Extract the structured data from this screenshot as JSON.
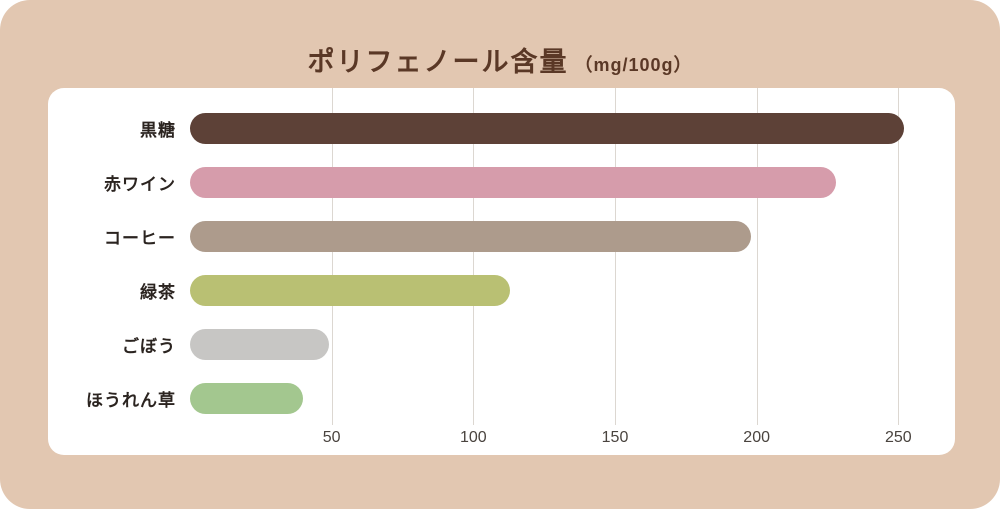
{
  "title": {
    "main": "ポリフェノール含量",
    "unit": "（mg/100g）"
  },
  "chart_data": {
    "type": "bar",
    "orientation": "horizontal",
    "title": "ポリフェノール含量（mg/100g）",
    "unit": "mg/100g",
    "categories": [
      "黒糖",
      "赤ワイン",
      "コーヒー",
      "緑茶",
      "ごぼう",
      "ほうれん草"
    ],
    "values": [
      252,
      228,
      198,
      113,
      49,
      40
    ],
    "bar_colors": [
      "#5d4137",
      "#d69cab",
      "#ad9b8c",
      "#b9c073",
      "#c7c6c4",
      "#a3c78f"
    ],
    "xlim": [
      0,
      270
    ],
    "xticks": [
      50,
      100,
      150,
      200,
      250
    ],
    "grid": true,
    "legend_position": "none",
    "xlabel": "",
    "ylabel": ""
  },
  "colors": {
    "page_background": "#e2c7b1",
    "panel_background": "#ffffff",
    "title_text": "#5a3826",
    "label_text": "#2b2420",
    "tick_text": "#4a443f",
    "gridline": "#dcd7d1"
  }
}
